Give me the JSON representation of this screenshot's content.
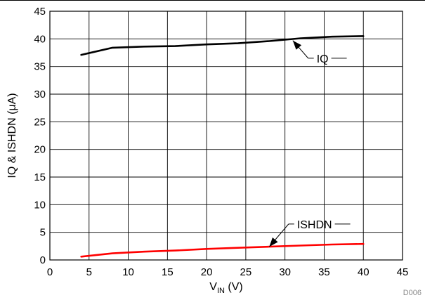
{
  "chart_data": {
    "type": "line",
    "xlabel": {
      "main": "V",
      "sub": "IN",
      "unit": " (V)"
    },
    "ylabel": "IQ & ISHDN (μA)",
    "xlim": [
      0,
      45
    ],
    "ylim": [
      0,
      45
    ],
    "xticks": [
      0,
      5,
      10,
      15,
      20,
      25,
      30,
      35,
      40,
      45
    ],
    "yticks": [
      0,
      5,
      10,
      15,
      20,
      25,
      30,
      35,
      40,
      45
    ],
    "grid": true,
    "series": [
      {
        "name": "IQ",
        "color": "#000000",
        "x": [
          4,
          8,
          12,
          16,
          20,
          24,
          28,
          32,
          36,
          40
        ],
        "y": [
          37.1,
          38.4,
          38.6,
          38.7,
          39.0,
          39.2,
          39.6,
          40.1,
          40.4,
          40.5
        ]
      },
      {
        "name": "ISHDN",
        "color": "#ff0000",
        "x": [
          4,
          8,
          12,
          16,
          20,
          24,
          28,
          32,
          36,
          40
        ],
        "y": [
          0.6,
          1.2,
          1.5,
          1.7,
          2.0,
          2.2,
          2.4,
          2.6,
          2.8,
          2.9
        ]
      }
    ],
    "annotations": [
      {
        "text": "IQ",
        "series": "IQ",
        "point": [
          31,
          39.7
        ],
        "label_at": [
          33.5,
          36.5
        ]
      },
      {
        "text": "ISHDN",
        "series": "ISHDN",
        "point": [
          28,
          2.4
        ],
        "label_at": [
          31,
          6.5
        ]
      }
    ],
    "figure_id": "D006"
  }
}
